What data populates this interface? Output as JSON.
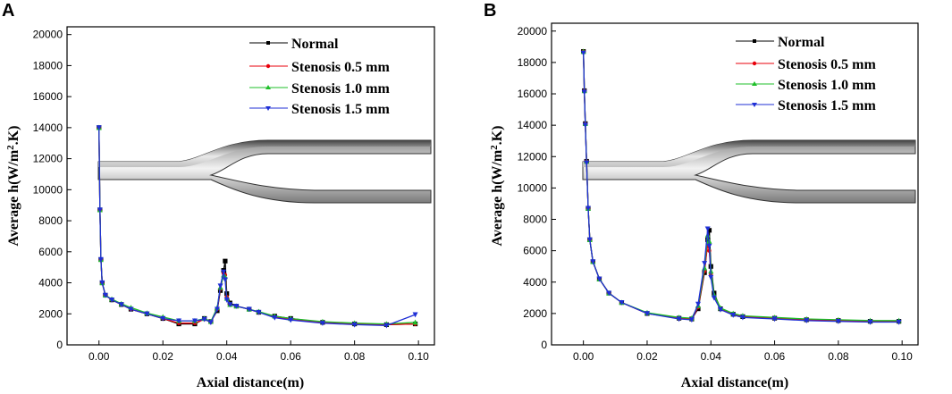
{
  "chart_data": [
    {
      "type": "line",
      "panel": "A",
      "xlabel": "Axial distance(m)",
      "ylabel": "Average h(W/m².K)",
      "ylabel_pre": "Average h(W/m",
      "ylabel_sup": "2",
      "ylabel_post": ".K)",
      "xlim": [
        -0.01,
        0.105
      ],
      "ylim": [
        0,
        20500
      ],
      "xticks": [
        "0.00",
        "0.02",
        "0.04",
        "0.06",
        "0.08",
        "0.10"
      ],
      "yticks": [
        "0",
        "2000",
        "4000",
        "6000",
        "8000",
        "10000",
        "12000",
        "14000",
        "16000",
        "18000",
        "20000"
      ],
      "legend": [
        "Normal",
        "Stenosis 0.5 mm",
        "Stenosis 1.0 mm",
        "Stenosis 1.5 mm"
      ],
      "series": [
        {
          "name": "Normal",
          "color": "#000000",
          "marker": "square",
          "x": [
            0.0,
            0.0003,
            0.0006,
            0.001,
            0.002,
            0.004,
            0.007,
            0.01,
            0.015,
            0.02,
            0.025,
            0.03,
            0.033,
            0.035,
            0.037,
            0.038,
            0.039,
            0.0395,
            0.04,
            0.041,
            0.043,
            0.047,
            0.05,
            0.055,
            0.06,
            0.07,
            0.08,
            0.09,
            0.099
          ],
          "y": [
            14000,
            8700,
            5500,
            4000,
            3200,
            2900,
            2600,
            2300,
            2000,
            1700,
            1350,
            1350,
            1700,
            1500,
            2200,
            3500,
            4800,
            5400,
            3300,
            2700,
            2500,
            2300,
            2100,
            1850,
            1700,
            1450,
            1350,
            1300,
            1350
          ]
        },
        {
          "name": "Stenosis 0.5 mm",
          "color": "#e8000b",
          "marker": "circle",
          "x": [
            0.0,
            0.0003,
            0.0006,
            0.001,
            0.002,
            0.004,
            0.007,
            0.01,
            0.015,
            0.02,
            0.025,
            0.03,
            0.033,
            0.035,
            0.037,
            0.038,
            0.039,
            0.0395,
            0.04,
            0.041,
            0.043,
            0.047,
            0.05,
            0.055,
            0.06,
            0.07,
            0.08,
            0.09,
            0.099
          ],
          "y": [
            14000,
            8700,
            5500,
            4000,
            3200,
            2900,
            2600,
            2300,
            2000,
            1700,
            1400,
            1400,
            1650,
            1450,
            2300,
            3600,
            4600,
            4500,
            3100,
            2600,
            2500,
            2300,
            2100,
            1800,
            1650,
            1450,
            1350,
            1300,
            1350
          ]
        },
        {
          "name": "Stenosis 1.0 mm",
          "color": "#1fbf2a",
          "marker": "triangle-up",
          "x": [
            0.0,
            0.0003,
            0.0006,
            0.001,
            0.002,
            0.004,
            0.007,
            0.01,
            0.015,
            0.02,
            0.025,
            0.03,
            0.033,
            0.035,
            0.037,
            0.038,
            0.039,
            0.0395,
            0.04,
            0.041,
            0.043,
            0.047,
            0.05,
            0.055,
            0.06,
            0.07,
            0.08,
            0.09,
            0.099
          ],
          "y": [
            14000,
            8700,
            5500,
            4000,
            3200,
            2950,
            2650,
            2400,
            2050,
            1800,
            1550,
            1550,
            1700,
            1500,
            2400,
            3700,
            4500,
            4400,
            3000,
            2600,
            2500,
            2300,
            2150,
            1850,
            1700,
            1500,
            1400,
            1350,
            1450
          ]
        },
        {
          "name": "Stenosis 1.5 mm",
          "color": "#1f2fd6",
          "marker": "triangle-down",
          "x": [
            0.0,
            0.0003,
            0.0006,
            0.001,
            0.002,
            0.004,
            0.007,
            0.01,
            0.015,
            0.02,
            0.025,
            0.03,
            0.033,
            0.035,
            0.037,
            0.038,
            0.039,
            0.0395,
            0.04,
            0.041,
            0.043,
            0.047,
            0.05,
            0.055,
            0.06,
            0.07,
            0.08,
            0.09,
            0.099
          ],
          "y": [
            14000,
            8700,
            5500,
            4000,
            3200,
            2900,
            2600,
            2300,
            2000,
            1700,
            1550,
            1550,
            1650,
            1450,
            2300,
            3800,
            4700,
            4200,
            2900,
            2600,
            2500,
            2300,
            2100,
            1750,
            1600,
            1400,
            1300,
            1250,
            1950
          ]
        }
      ]
    },
    {
      "type": "line",
      "panel": "B",
      "xlabel": "Axial distance(m)",
      "ylabel": "Average h(W/m².K)",
      "ylabel_pre": "Average h(W/m",
      "ylabel_sup": "2",
      "ylabel_post": ".K)",
      "xlim": [
        -0.01,
        0.105
      ],
      "ylim": [
        0,
        20500
      ],
      "xticks": [
        "0.00",
        "0.02",
        "0.04",
        "0.06",
        "0.08",
        "0.10"
      ],
      "yticks": [
        "0",
        "2000",
        "4000",
        "6000",
        "8000",
        "10000",
        "12000",
        "14000",
        "16000",
        "18000",
        "20000"
      ],
      "legend": [
        "Normal",
        "Stenosis 0.5 mm",
        "Stenosis 1.0 mm",
        "Stenosis 1.5 mm"
      ],
      "series": [
        {
          "name": "Normal",
          "color": "#000000",
          "marker": "square",
          "x": [
            0.0,
            0.0003,
            0.0006,
            0.001,
            0.0015,
            0.002,
            0.003,
            0.005,
            0.008,
            0.012,
            0.02,
            0.03,
            0.034,
            0.036,
            0.038,
            0.039,
            0.0395,
            0.04,
            0.041,
            0.043,
            0.047,
            0.05,
            0.06,
            0.07,
            0.08,
            0.09,
            0.099
          ],
          "y": [
            18700,
            16200,
            14100,
            11700,
            8700,
            6700,
            5300,
            4200,
            3300,
            2700,
            2000,
            1700,
            1650,
            2300,
            4600,
            6700,
            7300,
            5000,
            3300,
            2300,
            1950,
            1800,
            1700,
            1600,
            1550,
            1500,
            1500
          ]
        },
        {
          "name": "Stenosis 0.5 mm",
          "color": "#e8000b",
          "marker": "circle",
          "x": [
            0.0,
            0.0003,
            0.0006,
            0.001,
            0.0015,
            0.002,
            0.003,
            0.005,
            0.008,
            0.012,
            0.02,
            0.03,
            0.034,
            0.036,
            0.038,
            0.039,
            0.0395,
            0.04,
            0.041,
            0.043,
            0.047,
            0.05,
            0.06,
            0.07,
            0.08,
            0.09,
            0.099
          ],
          "y": [
            18700,
            16200,
            14100,
            11700,
            8700,
            6700,
            5300,
            4200,
            3300,
            2700,
            2000,
            1700,
            1650,
            2400,
            4700,
            6400,
            6000,
            4500,
            3100,
            2300,
            1950,
            1800,
            1700,
            1600,
            1550,
            1500,
            1500
          ]
        },
        {
          "name": "Stenosis 1.0 mm",
          "color": "#1fbf2a",
          "marker": "triangle-up",
          "x": [
            0.0,
            0.0003,
            0.0006,
            0.001,
            0.0015,
            0.002,
            0.003,
            0.005,
            0.008,
            0.012,
            0.02,
            0.03,
            0.034,
            0.036,
            0.038,
            0.039,
            0.0395,
            0.04,
            0.041,
            0.043,
            0.047,
            0.05,
            0.06,
            0.07,
            0.08,
            0.09,
            0.099
          ],
          "y": [
            18700,
            16200,
            14100,
            11700,
            8700,
            6700,
            5300,
            4200,
            3300,
            2700,
            2050,
            1750,
            1700,
            2500,
            4900,
            7000,
            6600,
            4700,
            3200,
            2350,
            2000,
            1850,
            1750,
            1650,
            1600,
            1550,
            1550
          ]
        },
        {
          "name": "Stenosis 1.5 mm",
          "color": "#1f2fd6",
          "marker": "triangle-down",
          "x": [
            0.0,
            0.0003,
            0.0006,
            0.001,
            0.0015,
            0.002,
            0.003,
            0.005,
            0.008,
            0.012,
            0.02,
            0.03,
            0.034,
            0.036,
            0.038,
            0.039,
            0.0395,
            0.04,
            0.041,
            0.043,
            0.047,
            0.05,
            0.06,
            0.07,
            0.08,
            0.09,
            0.099
          ],
          "y": [
            18600,
            16100,
            14000,
            11600,
            8700,
            6700,
            5300,
            4200,
            3300,
            2700,
            2000,
            1650,
            1600,
            2600,
            5200,
            7400,
            6300,
            4300,
            3000,
            2250,
            1900,
            1750,
            1650,
            1550,
            1500,
            1450,
            1450
          ]
        }
      ]
    }
  ]
}
